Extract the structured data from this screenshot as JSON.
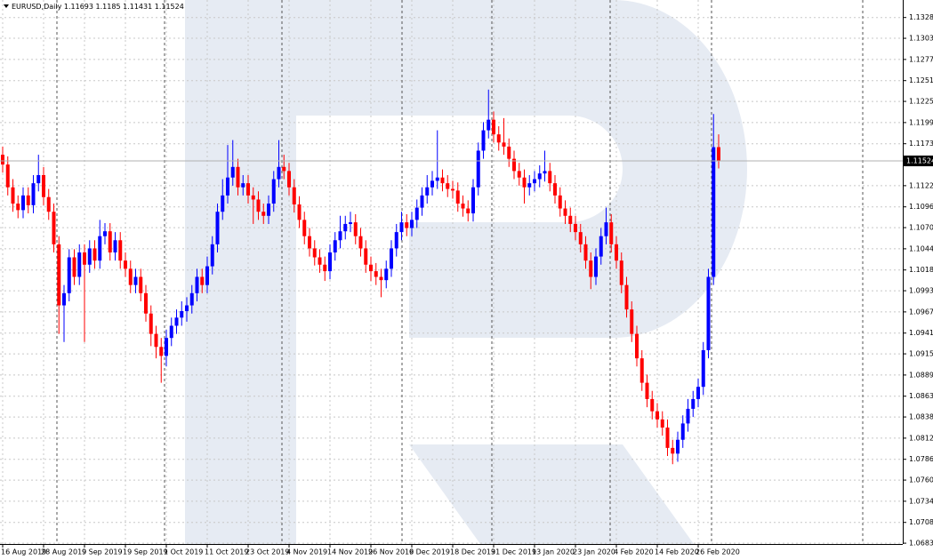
{
  "chart_data": {
    "type": "candlestick",
    "title": "EURUSD,Daily",
    "categories": [
      "16 Aug 2019",
      null,
      null,
      null,
      null,
      null,
      null,
      null,
      "28 Aug 2019",
      null,
      null,
      null,
      null,
      null,
      null,
      null,
      "9 Sep 2019",
      null,
      null,
      null,
      null,
      null,
      null,
      null,
      "19 Sep 2019",
      null,
      null,
      null,
      null,
      null,
      null,
      null,
      "1 Oct 2019",
      null,
      null,
      null,
      null,
      null,
      null,
      null,
      "11 Oct 2019",
      null,
      null,
      null,
      null,
      null,
      null,
      null,
      "23 Oct 2019",
      null,
      null,
      null,
      null,
      null,
      null,
      null,
      "4 Nov 2019",
      null,
      null,
      null,
      null,
      null,
      null,
      null,
      "14 Nov 2019",
      null,
      null,
      null,
      null,
      null,
      null,
      null,
      "26 Nov 2019",
      null,
      null,
      null,
      null,
      null,
      null,
      null,
      "6 Dec 2019",
      null,
      null,
      null,
      null,
      null,
      null,
      null,
      "18 Dec 2019",
      null,
      null,
      null,
      null,
      null,
      null,
      null,
      "31 Dec 2019",
      null,
      null,
      null,
      null,
      null,
      null,
      null,
      "13 Jan 2020",
      null,
      null,
      null,
      null,
      null,
      null,
      null,
      "23 Jan 2020",
      null,
      null,
      null,
      null,
      null,
      null,
      null,
      "4 Feb 2020",
      null,
      null,
      null,
      null,
      null,
      null,
      null,
      "14 Feb 2020",
      null,
      null,
      null,
      null,
      null,
      null,
      null,
      "26 Feb 2020",
      null,
      null,
      null,
      null
    ],
    "open": [
      1.116,
      1.1148,
      1.112,
      1.11,
      1.1092,
      1.111,
      1.1098,
      1.1125,
      1.1135,
      1.1108,
      1.109,
      1.105,
      1.0975,
      1.099,
      1.1034,
      1.101,
      1.104,
      1.1025,
      1.1045,
      1.103,
      1.106,
      1.1066,
      1.104,
      1.1055,
      1.103,
      1.102,
      1.1,
      1.101,
      1.099,
      1.0965,
      1.094,
      1.0924,
      1.0913,
      1.0935,
      1.095,
      1.096,
      1.0968,
      1.0975,
      1.099,
      1.101,
      1.1,
      1.1023,
      1.105,
      1.109,
      1.111,
      1.1132,
      1.1145,
      1.112,
      1.1125,
      1.111,
      1.1105,
      1.109,
      1.1085,
      1.11,
      1.113,
      1.1145,
      1.114,
      1.112,
      1.1099,
      1.108,
      1.106,
      1.1045,
      1.1034,
      1.1025,
      1.1017,
      1.104,
      1.1055,
      1.1066,
      1.1075,
      1.1077,
      1.106,
      1.1045,
      1.1025,
      1.1017,
      1.101,
      1.1006,
      1.102,
      1.1045,
      1.1065,
      1.1077,
      1.107,
      1.108,
      1.1095,
      1.111,
      1.112,
      1.1128,
      1.1132,
      1.1125,
      1.1118,
      1.1116,
      1.11,
      1.1094,
      1.1088,
      1.112,
      1.1165,
      1.119,
      1.1203,
      1.1185,
      1.1175,
      1.117,
      1.1155,
      1.114,
      1.1132,
      1.112,
      1.1125,
      1.113,
      1.1137,
      1.114,
      1.1125,
      1.111,
      1.1094,
      1.1085,
      1.1075,
      1.1065,
      1.105,
      1.103,
      1.101,
      1.1035,
      1.106,
      1.1077,
      1.105,
      1.103,
      1.1,
      1.097,
      1.094,
      1.091,
      1.088,
      1.086,
      1.0845,
      1.0835,
      1.0825,
      1.08,
      1.0793,
      1.081,
      1.083,
      1.0848,
      1.086,
      1.0875,
      1.092,
      1.101,
      1.11693
    ],
    "high": [
      1.117,
      1.1158,
      1.113,
      1.111,
      1.112,
      1.112,
      1.1135,
      1.116,
      1.1145,
      1.1118,
      1.11,
      1.106,
      1.1,
      1.1044,
      1.1044,
      1.105,
      1.105,
      1.1055,
      1.1055,
      1.108,
      1.1076,
      1.1076,
      1.1065,
      1.1065,
      1.104,
      1.103,
      1.102,
      1.102,
      1.1,
      1.0975,
      1.095,
      1.0935,
      1.0945,
      1.096,
      1.097,
      1.098,
      1.0985,
      1.1,
      1.102,
      1.102,
      1.1035,
      1.106,
      1.11,
      1.113,
      1.1172,
      1.1178,
      1.1155,
      1.1135,
      1.1135,
      1.112,
      1.1115,
      1.11,
      1.111,
      1.114,
      1.1178,
      1.116,
      1.115,
      1.113,
      1.1109,
      1.109,
      1.107,
      1.1055,
      1.1044,
      1.1035,
      1.105,
      1.1065,
      1.1085,
      1.1085,
      1.109,
      1.1087,
      1.107,
      1.1055,
      1.1035,
      1.1027,
      1.102,
      1.103,
      1.1055,
      1.1075,
      1.109,
      1.1087,
      1.109,
      1.1105,
      1.112,
      1.1135,
      1.114,
      1.119,
      1.1142,
      1.1135,
      1.1128,
      1.1126,
      1.111,
      1.1104,
      1.113,
      1.1175,
      1.12,
      1.124,
      1.1213,
      1.1195,
      1.1205,
      1.118,
      1.1165,
      1.115,
      1.1142,
      1.1135,
      1.114,
      1.1147,
      1.1165,
      1.115,
      1.1135,
      1.112,
      1.1104,
      1.1095,
      1.1085,
      1.1075,
      1.106,
      1.104,
      1.1045,
      1.107,
      1.1095,
      1.1087,
      1.106,
      1.104,
      1.101,
      1.098,
      1.095,
      1.092,
      1.089,
      1.087,
      1.0855,
      1.0845,
      1.0835,
      1.081,
      1.082,
      1.084,
      1.086,
      1.087,
      1.0885,
      1.093,
      1.102,
      1.121,
      1.1185
    ],
    "low": [
      1.1138,
      1.111,
      1.109,
      1.1082,
      1.1082,
      1.1088,
      1.1088,
      1.1115,
      1.1098,
      1.108,
      1.104,
      1.094,
      1.093,
      1.098,
      1.1,
      1.1,
      1.093,
      1.1015,
      1.102,
      1.102,
      1.105,
      1.103,
      1.103,
      1.102,
      1.101,
      1.099,
      1.099,
      1.098,
      1.0955,
      1.0925,
      1.091,
      1.088,
      1.09,
      1.0925,
      1.094,
      1.095,
      1.0955,
      1.0965,
      1.098,
      1.099,
      1.099,
      1.1013,
      1.104,
      1.108,
      1.11,
      1.1122,
      1.111,
      1.111,
      1.11,
      1.1075,
      1.108,
      1.1075,
      1.1075,
      1.109,
      1.112,
      1.113,
      1.111,
      1.1089,
      1.107,
      1.105,
      1.1035,
      1.1024,
      1.1015,
      1.1005,
      1.1007,
      1.103,
      1.1045,
      1.1056,
      1.1065,
      1.105,
      1.1035,
      1.1015,
      1.1005,
      1.1,
      1.0985,
      1.0996,
      1.101,
      1.1035,
      1.1055,
      1.106,
      1.106,
      1.107,
      1.1085,
      1.11,
      1.111,
      1.1118,
      1.1115,
      1.1108,
      1.1106,
      1.109,
      1.1084,
      1.1078,
      1.1078,
      1.111,
      1.1155,
      1.118,
      1.1175,
      1.1165,
      1.116,
      1.1145,
      1.113,
      1.1122,
      1.11,
      1.111,
      1.1115,
      1.112,
      1.1127,
      1.1115,
      1.11,
      1.1084,
      1.1075,
      1.1065,
      1.1055,
      1.104,
      1.102,
      1.0995,
      1.1,
      1.1025,
      1.105,
      1.104,
      1.102,
      1.099,
      1.096,
      1.093,
      1.09,
      1.087,
      1.085,
      1.0835,
      1.0825,
      1.0815,
      1.079,
      1.078,
      1.0783,
      1.08,
      1.082,
      1.0838,
      1.085,
      1.0865,
      1.091,
      1.1,
      1.11431
    ],
    "close": [
      1.1148,
      1.112,
      1.11,
      1.1092,
      1.111,
      1.1098,
      1.1125,
      1.1135,
      1.1108,
      1.109,
      1.105,
      1.0975,
      1.099,
      1.1034,
      1.101,
      1.104,
      1.1025,
      1.1045,
      1.103,
      1.106,
      1.1066,
      1.104,
      1.1055,
      1.103,
      1.102,
      1.1,
      1.101,
      1.099,
      1.0965,
      1.094,
      1.0924,
      1.0913,
      1.0935,
      1.095,
      1.096,
      1.0968,
      1.0975,
      1.099,
      1.101,
      1.1,
      1.1023,
      1.105,
      1.109,
      1.111,
      1.1132,
      1.1145,
      1.112,
      1.1125,
      1.111,
      1.1105,
      1.109,
      1.1085,
      1.11,
      1.113,
      1.1145,
      1.114,
      1.112,
      1.1099,
      1.108,
      1.106,
      1.1045,
      1.1034,
      1.1025,
      1.1017,
      1.104,
      1.1055,
      1.1066,
      1.1075,
      1.1077,
      1.106,
      1.1045,
      1.1025,
      1.1017,
      1.101,
      1.1006,
      1.102,
      1.1045,
      1.1065,
      1.1077,
      1.107,
      1.108,
      1.1095,
      1.111,
      1.112,
      1.1128,
      1.1132,
      1.1125,
      1.1118,
      1.1116,
      1.11,
      1.1094,
      1.1088,
      1.112,
      1.1165,
      1.119,
      1.1203,
      1.1185,
      1.1175,
      1.117,
      1.1155,
      1.114,
      1.1132,
      1.112,
      1.1125,
      1.113,
      1.1137,
      1.114,
      1.1125,
      1.111,
      1.1094,
      1.1085,
      1.1075,
      1.1065,
      1.105,
      1.103,
      1.101,
      1.1035,
      1.106,
      1.1077,
      1.105,
      1.103,
      1.1,
      1.097,
      1.094,
      1.091,
      1.088,
      1.086,
      1.0845,
      1.0835,
      1.0825,
      1.08,
      1.0793,
      1.081,
      1.083,
      1.0848,
      1.086,
      1.0875,
      1.092,
      1.101,
      1.11693,
      1.11524
    ],
    "up_color": "#0000ff",
    "down_color": "#ff0000",
    "ylim": [
      1.0682,
      1.135
    ],
    "yticks": [
      1.13285,
      {
        "value": 1.1303,
        "label": "1.13030"
      },
      {
        "value": 1.1277,
        "label": "1.12770"
      },
      {
        "value": 1.1251,
        "label": "1.12510"
      },
      1.12255,
      1.11995,
      1.11735,
      {
        "value": 1.1122,
        "label": "1.11220"
      },
      {
        "value": 1.1096,
        "label": "1.10960"
      },
      1.10705,
      1.10445,
      1.10185,
      {
        "value": 1.0993,
        "label": "1.09930"
      },
      {
        "value": 1.0967,
        "label": "1.09670"
      },
      {
        "value": 1.0941,
        "label": "1.09410"
      },
      1.09155,
      1.08895,
      1.08635,
      {
        "value": 1.0838,
        "label": "1.08380"
      },
      {
        "value": 1.0812,
        "label": "1.08120"
      },
      {
        "value": 1.0786,
        "label": "1.07860"
      },
      1.07605,
      1.07345,
      1.07085,
      {
        "value": 1.0683,
        "label": "1.06830"
      }
    ],
    "grid": true
  }
}
